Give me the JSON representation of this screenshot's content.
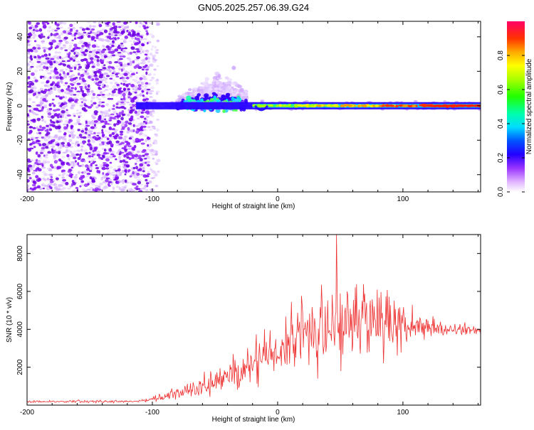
{
  "title": "GN05.2025.257.06.39.G24",
  "chart_data": [
    {
      "type": "heatmap",
      "title": "GN05.2025.257.06.39.G24",
      "xlabel": "Height of straight line (km)",
      "ylabel": "Frequency (Hz)",
      "xlim": [
        -200,
        162
      ],
      "ylim": [
        -50,
        49
      ],
      "xticks": [
        -200,
        -100,
        0,
        100
      ],
      "xtick_labels": [
        "-200",
        "-100",
        "0",
        "100"
      ],
      "yticks": [
        -40,
        -20,
        0,
        20,
        40
      ],
      "ytick_labels": [
        "-40",
        "-20",
        "0",
        "20",
        "40"
      ],
      "colorbar": {
        "label": "Normalized spectral amplitude",
        "range": [
          0,
          1
        ],
        "ticks": [
          0,
          0.2,
          0.4,
          0.6,
          0.8
        ],
        "tick_labels": [
          "0.0",
          "0.2",
          "0.4",
          "0.6",
          "0.8"
        ]
      },
      "features": {
        "noise_region_x": [
          -200,
          -95
        ],
        "carrier_start_x": -113,
        "carrier_frequency": 0,
        "scintillation_region_x": [
          -80,
          -25
        ],
        "scintillation_peak_frequency": 24
      }
    },
    {
      "type": "line",
      "xlabel": "Height of straight line (km)",
      "ylabel": "SNR (10 * v/v)",
      "xlim": [
        -200,
        162
      ],
      "ylim": [
        0,
        9000
      ],
      "xticks": [
        -200,
        -100,
        0,
        100
      ],
      "xtick_labels": [
        "-200",
        "-100",
        "0",
        "100"
      ],
      "yticks": [
        2000,
        4000,
        6000,
        8000
      ],
      "ytick_labels": [
        "2000",
        "4000",
        "6000",
        "8000"
      ],
      "color": "#ee3333",
      "x_step": 0.5,
      "envelope": [
        {
          "x": -200,
          "mean": 180,
          "amp": 80
        },
        {
          "x": -110,
          "mean": 200,
          "amp": 100
        },
        {
          "x": -95,
          "mean": 350,
          "amp": 250
        },
        {
          "x": -75,
          "mean": 700,
          "amp": 550
        },
        {
          "x": -55,
          "mean": 1100,
          "amp": 800
        },
        {
          "x": -35,
          "mean": 1700,
          "amp": 1100
        },
        {
          "x": -20,
          "mean": 2300,
          "amp": 1500
        },
        {
          "x": -5,
          "mean": 2700,
          "amp": 1800
        },
        {
          "x": 10,
          "mean": 3400,
          "amp": 2300
        },
        {
          "x": 30,
          "mean": 4200,
          "amp": 2800
        },
        {
          "x": 50,
          "mean": 4400,
          "amp": 3200
        },
        {
          "x": 70,
          "mean": 4300,
          "amp": 2800
        },
        {
          "x": 90,
          "mean": 4300,
          "amp": 2200
        },
        {
          "x": 110,
          "mean": 4200,
          "amp": 900
        },
        {
          "x": 130,
          "mean": 4050,
          "amp": 500
        },
        {
          "x": 162,
          "mean": 3900,
          "amp": 300
        }
      ],
      "peak": {
        "x": 47,
        "y": 9000
      }
    }
  ]
}
